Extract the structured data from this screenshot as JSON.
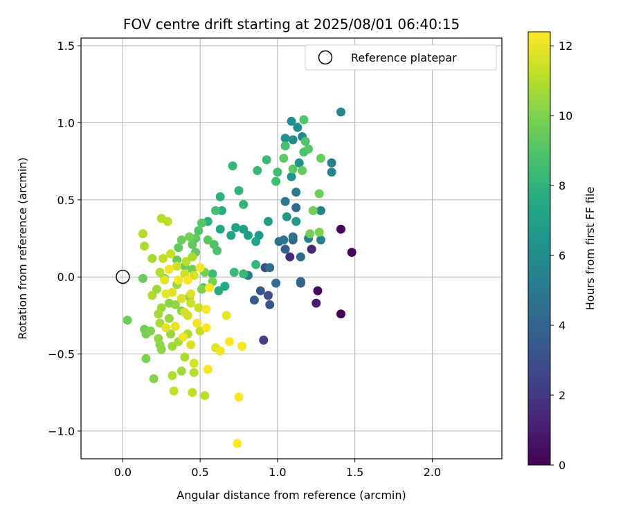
{
  "chart_data": {
    "type": "scatter",
    "title": "FOV centre drift starting at 2025/08/01 06:40:15",
    "xlabel": "Angular distance from reference (arcmin)",
    "ylabel": "Rotation from reference (arcmin)",
    "xlim": [
      -0.27,
      2.45
    ],
    "ylim": [
      -1.18,
      1.55
    ],
    "xticks": [
      0.0,
      0.5,
      1.0,
      1.5,
      2.0
    ],
    "xtick_labels": [
      "0.0",
      "0.5",
      "1.0",
      "1.5",
      "2.0"
    ],
    "yticks": [
      -1.0,
      -0.5,
      0.0,
      0.5,
      1.0,
      1.5
    ],
    "ytick_labels": [
      "−1.0",
      "−0.5",
      "0.0",
      "0.5",
      "1.0",
      "1.5"
    ],
    "grid": true,
    "legend": {
      "position": "top-right",
      "entries": [
        "Reference platepar"
      ]
    },
    "reference_point": {
      "x": 0.0,
      "y": 0.0,
      "label": "Reference platepar"
    },
    "colorbar": {
      "label": "Hours from first FF file",
      "range": [
        0,
        12.4
      ],
      "ticks": [
        0,
        2,
        4,
        6,
        8,
        10,
        12
      ],
      "tick_labels": [
        "0",
        "2",
        "4",
        "6",
        "8",
        "10",
        "12"
      ],
      "colormap": "viridis"
    },
    "points": [
      [
        1.41,
        -0.24,
        0.1
      ],
      [
        1.41,
        0.31,
        0.2
      ],
      [
        1.48,
        0.16,
        0.3
      ],
      [
        1.26,
        -0.09,
        0.4
      ],
      [
        1.25,
        -0.17,
        1.0
      ],
      [
        1.22,
        0.18,
        1.4
      ],
      [
        1.08,
        0.13,
        1.6
      ],
      [
        0.91,
        -0.41,
        2.2
      ],
      [
        0.92,
        0.06,
        2.8
      ],
      [
        0.94,
        -0.12,
        3.0
      ],
      [
        0.95,
        -0.18,
        3.2
      ],
      [
        0.89,
        -0.09,
        3.3
      ],
      [
        0.85,
        -0.15,
        3.5
      ],
      [
        1.05,
        0.18,
        3.6
      ],
      [
        1.1,
        0.24,
        3.8
      ],
      [
        1.15,
        -0.04,
        3.9
      ],
      [
        1.15,
        -0.03,
        4.0
      ],
      [
        1.12,
        0.45,
        4.2
      ],
      [
        0.99,
        -0.04,
        4.3
      ],
      [
        1.15,
        0.13,
        4.4
      ],
      [
        0.95,
        0.06,
        4.5
      ],
      [
        1.1,
        0.26,
        4.6
      ],
      [
        1.01,
        0.23,
        4.7
      ],
      [
        1.04,
        0.24,
        4.8
      ],
      [
        1.12,
        0.55,
        4.9
      ],
      [
        1.05,
        0.49,
        5.0
      ],
      [
        0.81,
        0.01,
        5.1
      ],
      [
        1.2,
        0.25,
        5.2
      ],
      [
        1.28,
        0.24,
        5.3
      ],
      [
        1.35,
        0.74,
        5.4
      ],
      [
        1.28,
        0.43,
        5.5
      ],
      [
        1.41,
        1.07,
        5.6
      ],
      [
        1.35,
        0.68,
        5.7
      ],
      [
        1.16,
        0.91,
        5.8
      ],
      [
        1.1,
        0.89,
        5.9
      ],
      [
        1.13,
        0.97,
        6.0
      ],
      [
        1.09,
        1.01,
        6.1
      ],
      [
        1.05,
        0.9,
        6.2
      ],
      [
        1.14,
        0.74,
        6.3
      ],
      [
        1.09,
        0.65,
        6.4
      ],
      [
        1.06,
        0.39,
        6.5
      ],
      [
        1.12,
        0.36,
        6.6
      ],
      [
        0.94,
        0.36,
        6.7
      ],
      [
        0.88,
        0.27,
        6.8
      ],
      [
        0.81,
        0.27,
        6.9
      ],
      [
        0.78,
        0.31,
        7.0
      ],
      [
        0.86,
        0.23,
        7.1
      ],
      [
        0.73,
        0.32,
        7.2
      ],
      [
        0.7,
        0.27,
        7.3
      ],
      [
        0.63,
        0.31,
        7.4
      ],
      [
        0.66,
        -0.06,
        7.5
      ],
      [
        0.62,
        -0.09,
        7.6
      ],
      [
        0.64,
        0.43,
        7.7
      ],
      [
        0.55,
        0.36,
        7.8
      ],
      [
        0.63,
        0.52,
        7.9
      ],
      [
        0.75,
        0.56,
        8.0
      ],
      [
        0.78,
        0.47,
        8.1
      ],
      [
        0.71,
        0.72,
        8.2
      ],
      [
        0.87,
        0.69,
        8.3
      ],
      [
        0.93,
        0.76,
        8.4
      ],
      [
        1.0,
        0.68,
        8.5
      ],
      [
        0.99,
        0.62,
        8.6
      ],
      [
        1.05,
        0.85,
        8.7
      ],
      [
        1.17,
        0.81,
        8.8
      ],
      [
        1.18,
        0.88,
        8.9
      ],
      [
        1.17,
        1.02,
        9.0
      ],
      [
        1.2,
        0.83,
        9.1
      ],
      [
        1.1,
        0.7,
        9.2
      ],
      [
        1.04,
        0.77,
        9.3
      ],
      [
        1.16,
        0.69,
        9.4
      ],
      [
        1.28,
        0.77,
        9.5
      ],
      [
        1.27,
        0.54,
        9.6
      ],
      [
        1.23,
        0.43,
        9.7
      ],
      [
        1.21,
        0.28,
        9.8
      ],
      [
        1.27,
        0.29,
        9.9
      ],
      [
        0.86,
        0.08,
        8.2
      ],
      [
        0.78,
        0.02,
        8.3
      ],
      [
        0.72,
        0.03,
        8.4
      ],
      [
        0.58,
        0.02,
        8.5
      ],
      [
        0.52,
        -0.07,
        8.6
      ],
      [
        0.6,
        0.43,
        8.7
      ],
      [
        0.61,
        0.17,
        8.8
      ],
      [
        0.59,
        0.21,
        8.9
      ],
      [
        0.49,
        0.3,
        9.0
      ],
      [
        0.51,
        0.35,
        9.1
      ],
      [
        0.47,
        0.25,
        9.2
      ],
      [
        0.45,
        0.21,
        9.3
      ],
      [
        0.36,
        0.19,
        9.4
      ],
      [
        0.35,
        0.11,
        9.5
      ],
      [
        0.4,
        0.07,
        9.6
      ],
      [
        0.45,
        0.05,
        9.7
      ],
      [
        0.53,
        0.03,
        9.8
      ],
      [
        0.58,
        -0.03,
        9.9
      ],
      [
        0.51,
        -0.08,
        10.0
      ],
      [
        0.43,
        -0.13,
        10.1
      ],
      [
        0.38,
        -0.22,
        10.2
      ],
      [
        0.34,
        -0.18,
        10.3
      ],
      [
        0.3,
        -0.27,
        10.4
      ],
      [
        0.25,
        -0.2,
        10.5
      ],
      [
        0.22,
        -0.08,
        10.6
      ],
      [
        0.19,
        0.12,
        10.7
      ],
      [
        0.14,
        0.2,
        10.8
      ],
      [
        0.13,
        0.28,
        10.9
      ],
      [
        0.25,
        0.38,
        11.0
      ],
      [
        0.29,
        0.36,
        11.1
      ],
      [
        0.13,
        -0.01,
        9.5
      ],
      [
        0.03,
        -0.28,
        9.6
      ],
      [
        0.14,
        -0.34,
        9.7
      ],
      [
        0.15,
        -0.37,
        9.8
      ],
      [
        0.15,
        -0.53,
        9.9
      ],
      [
        0.18,
        -0.35,
        10.0
      ],
      [
        0.2,
        -0.66,
        10.1
      ],
      [
        0.24,
        -0.44,
        10.2
      ],
      [
        0.25,
        -0.47,
        10.3
      ],
      [
        0.23,
        -0.4,
        10.4
      ],
      [
        0.31,
        -0.37,
        10.5
      ],
      [
        0.32,
        -0.45,
        10.6
      ],
      [
        0.36,
        -0.42,
        10.7
      ],
      [
        0.4,
        -0.52,
        10.8
      ],
      [
        0.42,
        -0.37,
        10.9
      ],
      [
        0.46,
        -0.62,
        11.0
      ],
      [
        0.53,
        -0.77,
        11.1
      ],
      [
        0.5,
        -0.35,
        11.2
      ],
      [
        0.49,
        -0.2,
        11.3
      ],
      [
        0.44,
        -0.17,
        11.4
      ],
      [
        0.42,
        -0.25,
        11.5
      ],
      [
        0.4,
        -0.23,
        11.6
      ],
      [
        0.38,
        -0.14,
        11.7
      ],
      [
        0.32,
        -0.1,
        11.8
      ],
      [
        0.28,
        -0.11,
        11.9
      ],
      [
        0.27,
        -0.02,
        12.0
      ],
      [
        0.3,
        0.05,
        12.1
      ],
      [
        0.36,
        -0.02,
        12.2
      ],
      [
        0.42,
        -0.02,
        12.3
      ],
      [
        0.5,
        0.06,
        12.3
      ],
      [
        0.54,
        -0.33,
        12.3
      ],
      [
        0.55,
        -0.6,
        12.2
      ],
      [
        0.63,
        -0.48,
        12.1
      ],
      [
        0.67,
        -0.25,
        12.0
      ],
      [
        0.69,
        -0.42,
        12.3
      ],
      [
        0.75,
        -0.78,
        12.3
      ],
      [
        0.74,
        -1.08,
        12.4
      ],
      [
        0.77,
        -0.45,
        12.3
      ],
      [
        0.6,
        -0.46,
        11.8
      ],
      [
        0.46,
        -0.56,
        11.6
      ],
      [
        0.44,
        -0.44,
        11.7
      ],
      [
        0.45,
        -0.75,
        11.2
      ],
      [
        0.33,
        -0.74,
        11.3
      ],
      [
        0.32,
        -0.64,
        10.9
      ],
      [
        0.38,
        -0.61,
        10.6
      ],
      [
        0.24,
        -0.3,
        10.8
      ],
      [
        0.23,
        -0.24,
        10.7
      ],
      [
        0.19,
        -0.12,
        10.9
      ],
      [
        0.24,
        0.03,
        11.0
      ],
      [
        0.26,
        0.12,
        11.2
      ],
      [
        0.31,
        0.15,
        11.3
      ],
      [
        0.35,
        0.07,
        11.4
      ],
      [
        0.4,
        0.02,
        11.5
      ],
      [
        0.46,
        0.01,
        11.6
      ],
      [
        0.44,
        -0.11,
        11.8
      ],
      [
        0.28,
        -0.33,
        11.9
      ],
      [
        0.34,
        -0.32,
        12.0
      ],
      [
        0.39,
        -0.39,
        12.1
      ],
      [
        0.48,
        -0.3,
        12.2
      ],
      [
        0.54,
        -0.21,
        12.3
      ],
      [
        0.56,
        -0.07,
        12.4
      ],
      [
        0.41,
        0.1,
        11.1
      ],
      [
        0.45,
        0.13,
        10.8
      ],
      [
        0.35,
        -0.05,
        10.5
      ],
      [
        0.3,
        -0.17,
        10.2
      ],
      [
        0.27,
        -0.01,
        10.0
      ],
      [
        0.43,
        0.26,
        9.8
      ],
      [
        0.38,
        0.24,
        9.6
      ],
      [
        0.47,
        0.16,
        9.4
      ],
      [
        0.55,
        0.24,
        9.2
      ]
    ]
  }
}
